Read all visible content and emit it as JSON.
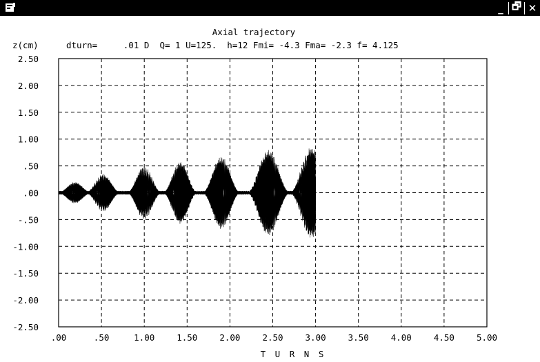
{
  "window": {
    "controls": {
      "minimize": "_",
      "restore": "🗗",
      "close": "✕"
    },
    "icon": "app-window-icon"
  },
  "chart_data": {
    "type": "line",
    "title": "Axial trajectory",
    "subtitle": "dturn=     .01 D  Q= 1 U=125.  h=12 Fmi= -4.3 Fma= -2.3 f= 4.125",
    "ylabel": "z(cm)",
    "xlabel": "T U R N S",
    "xlim": [
      0,
      5
    ],
    "ylim": [
      -2.5,
      2.5
    ],
    "xticks": [
      ".00",
      ".50",
      "1.00",
      "1.50",
      "2.00",
      "2.50",
      "3.00",
      "3.50",
      "4.00",
      "4.50",
      "5.00"
    ],
    "yticks": [
      "2.50",
      "2.00",
      "1.50",
      "1.00",
      ".50",
      ".00",
      "-.50",
      "-1.00",
      "-1.50",
      "-2.00",
      "-2.50"
    ],
    "grid": true,
    "trajectory_end_turns": 3.0,
    "envelope_lobes": [
      {
        "center": 0.19,
        "half_width": 0.19,
        "amplitude": 0.2
      },
      {
        "center": 0.52,
        "half_width": 0.2,
        "amplitude": 0.35
      },
      {
        "center": 1.0,
        "half_width": 0.2,
        "amplitude": 0.5
      },
      {
        "center": 1.42,
        "half_width": 0.2,
        "amplitude": 0.58
      },
      {
        "center": 1.9,
        "half_width": 0.22,
        "amplitude": 0.68
      },
      {
        "center": 2.45,
        "half_width": 0.25,
        "amplitude": 0.8
      },
      {
        "center": 2.95,
        "half_width": 0.25,
        "amplitude": 0.85
      }
    ],
    "line_color": "#000000"
  }
}
